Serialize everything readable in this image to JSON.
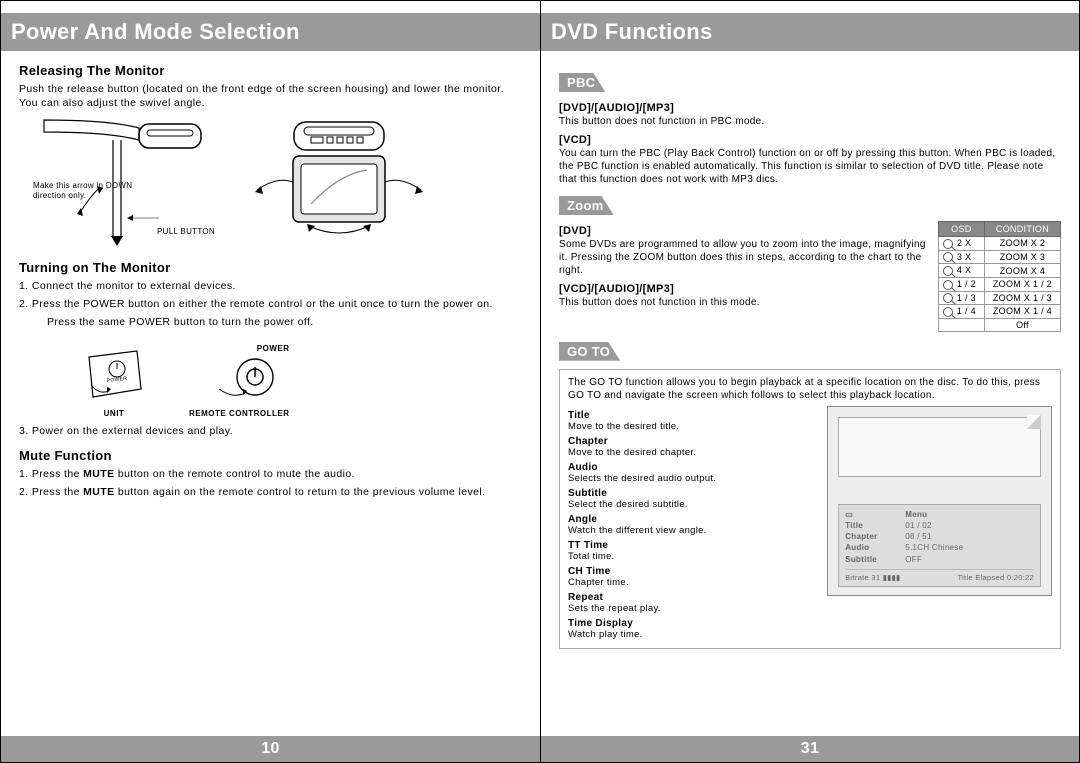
{
  "left": {
    "banner": "Power And Mode Selection",
    "s1_title": "Releasing The Monitor",
    "s1_body": "Push the release button (located on the front edge of the screen housing) and lower the monitor. You can also adjust the swivel angle.",
    "illus": {
      "caption1a": "Make this arrow in DOWN",
      "caption1b": "direction only.",
      "pull_label": "PULL BUTTON"
    },
    "s2_title": "Turning on The Monitor",
    "s2_items": [
      "1. Connect the monitor to external devices.",
      "2. Press the POWER button on either the remote control or the unit once to turn the power on.",
      "Press the same POWER button to turn the power off.",
      "3. Power on the external devices and play."
    ],
    "unit_labels": {
      "power": "POWER",
      "unit": "UNIT",
      "remote": "REMOTE CONTROLLER"
    },
    "s3_title": "Mute Function",
    "s3_items": [
      {
        "pre": "1. Press the ",
        "bold": "MUTE",
        "post": " button on the remote control to mute the audio."
      },
      {
        "pre": "2. Press the ",
        "bold": "MUTE",
        "post": " button again on the remote control to return to the previous volume level."
      }
    ],
    "pagenum": "10"
  },
  "right": {
    "banner": "DVD Functions",
    "pbc": {
      "tab": "PBC",
      "h1": "[DVD]/[AUDIO]/[MP3]",
      "t1": "This button does not function in PBC mode.",
      "h2": "[VCD]",
      "t2": "You can turn the PBC (Play Back Control) function on or off by pressing this button. When PBC is loaded, the PBC function is enabled automatically. This function is similar to selection of DVD title. Please note that this function does not work with MP3 dics."
    },
    "zoom": {
      "tab": "Zoom",
      "h1": "[DVD]",
      "t1": "Some DVDs are programmed to allow you to zoom into the image, magnifying it. Pressing the ZOOM button does this in steps, according to the chart to the right.",
      "h2": "[VCD]/[AUDIO]/[MP3]",
      "t2": "This button does not function in this mode.",
      "table": {
        "headers": [
          "OSD",
          "CONDITION"
        ],
        "rows": [
          [
            "2 X",
            "ZOOM X 2"
          ],
          [
            "3 X",
            "ZOOM X 3"
          ],
          [
            "4 X",
            "ZOOM X 4"
          ],
          [
            "1 / 2",
            "ZOOM X 1 / 2"
          ],
          [
            "1 / 3",
            "ZOOM X 1 / 3"
          ],
          [
            "1 / 4",
            "ZOOM X 1 / 4"
          ],
          [
            "",
            "Off"
          ]
        ]
      }
    },
    "goto": {
      "tab": "GO TO",
      "intro": "The GO TO function allows you to begin playback at a specific location on the disc. To do this, press GO TO and navigate the screen which follows to select this playback location.",
      "items": [
        {
          "label": "Title",
          "desc": "Move to the desired title."
        },
        {
          "label": "Chapter",
          "desc": "Move to the desired chapter."
        },
        {
          "label": "Audio",
          "desc": "Selects the desired audio output."
        },
        {
          "label": "Subtitle",
          "desc": "Select the desired subtitle."
        },
        {
          "label": "Angle",
          "desc": "Watch the different view angle."
        },
        {
          "label": "TT Time",
          "desc": "Total time."
        },
        {
          "label": "CH Time",
          "desc": "Chapter time."
        },
        {
          "label": "Repeat",
          "desc": "Sets the repeat play."
        },
        {
          "label": "Time Display",
          "desc": "Watch play time."
        }
      ],
      "osd": {
        "menu_title": "Menu",
        "rows": [
          [
            "Title",
            "01 / 02"
          ],
          [
            "Chapter",
            "08 / 51"
          ],
          [
            "Audio",
            "5.1CH Chinese"
          ],
          [
            "Subtitle",
            "OFF"
          ]
        ],
        "status_left": "Bitrate 31",
        "status_right": "Title Elapsed 0:20:22"
      }
    },
    "pagenum": "31"
  },
  "colors": {
    "banner_bg": "#9a9a9a",
    "banner_fg": "#ffffff",
    "text": "#000000",
    "border": "#000000"
  }
}
